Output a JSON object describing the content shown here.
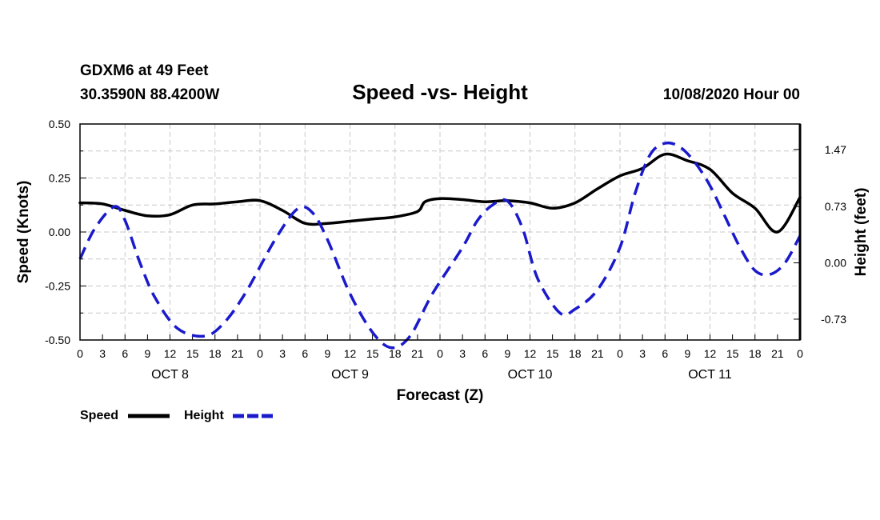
{
  "header": {
    "station_line": "GDXM6 at 49 Feet",
    "coords_line": "30.3590N 88.4200W",
    "title": "Speed -vs- Height",
    "datetime": "10/08/2020 Hour 00"
  },
  "chart_data": {
    "type": "line",
    "title": "Speed -vs- Height",
    "xlabel": "Forecast (Z)",
    "ylabel_left": "Speed (Knots)",
    "ylabel_right": "Height (feet)",
    "x_unit": "hours from 10/08/2020 00Z",
    "xlim": [
      0,
      96
    ],
    "x_tick_labels": [
      "0",
      "3",
      "6",
      "9",
      "12",
      "15",
      "18",
      "21",
      "0",
      "3",
      "6",
      "9",
      "12",
      "15",
      "18",
      "21",
      "0",
      "3",
      "6",
      "9",
      "12",
      "15",
      "18",
      "21",
      "0",
      "3",
      "6",
      "9",
      "12",
      "15",
      "18",
      "21",
      "0"
    ],
    "day_labels": [
      {
        "label": "OCT 8",
        "at_hour": 12
      },
      {
        "label": "OCT 9",
        "at_hour": 36
      },
      {
        "label": "OCT 10",
        "at_hour": 60
      },
      {
        "label": "OCT 11",
        "at_hour": 84
      }
    ],
    "ylim_left": [
      -0.5,
      0.5
    ],
    "y_left_ticks": [
      "0.50",
      "0.25",
      "0.00",
      "-0.25",
      "-0.50"
    ],
    "ylim_right": [
      -1.0,
      1.8
    ],
    "y_right_ticks": [
      {
        "label": "1.47",
        "value": 1.47
      },
      {
        "label": "0.73",
        "value": 0.73
      },
      {
        "label": "0.00",
        "value": 0.0
      },
      {
        "label": "-0.73",
        "value": -0.73
      }
    ],
    "grid": true,
    "series": [
      {
        "name": "Speed",
        "axis": "left",
        "color": "#000000",
        "style": "solid",
        "points": [
          [
            0,
            0.135
          ],
          [
            3,
            0.13
          ],
          [
            6,
            0.1
          ],
          [
            9,
            0.075
          ],
          [
            12,
            0.08
          ],
          [
            15,
            0.125
          ],
          [
            18,
            0.13
          ],
          [
            21,
            0.14
          ],
          [
            24,
            0.145
          ],
          [
            27,
            0.1
          ],
          [
            30,
            0.04
          ],
          [
            33,
            0.04
          ],
          [
            36,
            0.05
          ],
          [
            39,
            0.06
          ],
          [
            42,
            0.07
          ],
          [
            45,
            0.095
          ],
          [
            46,
            0.14
          ],
          [
            48,
            0.155
          ],
          [
            51,
            0.15
          ],
          [
            54,
            0.14
          ],
          [
            57,
            0.145
          ],
          [
            60,
            0.135
          ],
          [
            63,
            0.11
          ],
          [
            66,
            0.135
          ],
          [
            69,
            0.2
          ],
          [
            72,
            0.26
          ],
          [
            75,
            0.295
          ],
          [
            78,
            0.36
          ],
          [
            81,
            0.33
          ],
          [
            84,
            0.29
          ],
          [
            87,
            0.18
          ],
          [
            90,
            0.11
          ],
          [
            93,
            0.0
          ],
          [
            96,
            0.16
          ]
        ]
      },
      {
        "name": "Height",
        "axis": "right",
        "color": "#1a1acc",
        "style": "dashed",
        "points": [
          [
            0,
            0.05
          ],
          [
            2,
            0.45
          ],
          [
            4.6,
            0.73
          ],
          [
            6,
            0.55
          ],
          [
            8,
            0.0
          ],
          [
            10,
            -0.45
          ],
          [
            13,
            -0.85
          ],
          [
            16.5,
            -0.95
          ],
          [
            19,
            -0.8
          ],
          [
            22,
            -0.4
          ],
          [
            26,
            0.3
          ],
          [
            29,
            0.7
          ],
          [
            31,
            0.65
          ],
          [
            33,
            0.3
          ],
          [
            36,
            -0.4
          ],
          [
            39,
            -0.9
          ],
          [
            41.5,
            -1.1
          ],
          [
            44,
            -0.95
          ],
          [
            47,
            -0.4
          ],
          [
            51,
            0.2
          ],
          [
            53,
            0.55
          ],
          [
            55,
            0.75
          ],
          [
            57,
            0.8
          ],
          [
            59,
            0.45
          ],
          [
            61,
            -0.2
          ],
          [
            64,
            -0.65
          ],
          [
            66,
            -0.6
          ],
          [
            69,
            -0.35
          ],
          [
            72,
            0.2
          ],
          [
            74,
            0.9
          ],
          [
            76,
            1.4
          ],
          [
            78,
            1.55
          ],
          [
            80,
            1.5
          ],
          [
            82,
            1.3
          ],
          [
            84,
            1.0
          ],
          [
            86,
            0.6
          ],
          [
            88,
            0.2
          ],
          [
            90,
            -0.1
          ],
          [
            92,
            -0.15
          ],
          [
            94,
            0.0
          ],
          [
            96,
            0.35
          ]
        ]
      }
    ],
    "legend": [
      {
        "label": "Speed",
        "color": "#000000",
        "style": "solid"
      },
      {
        "label": "Height",
        "color": "#1a1acc",
        "style": "dashed"
      }
    ]
  }
}
